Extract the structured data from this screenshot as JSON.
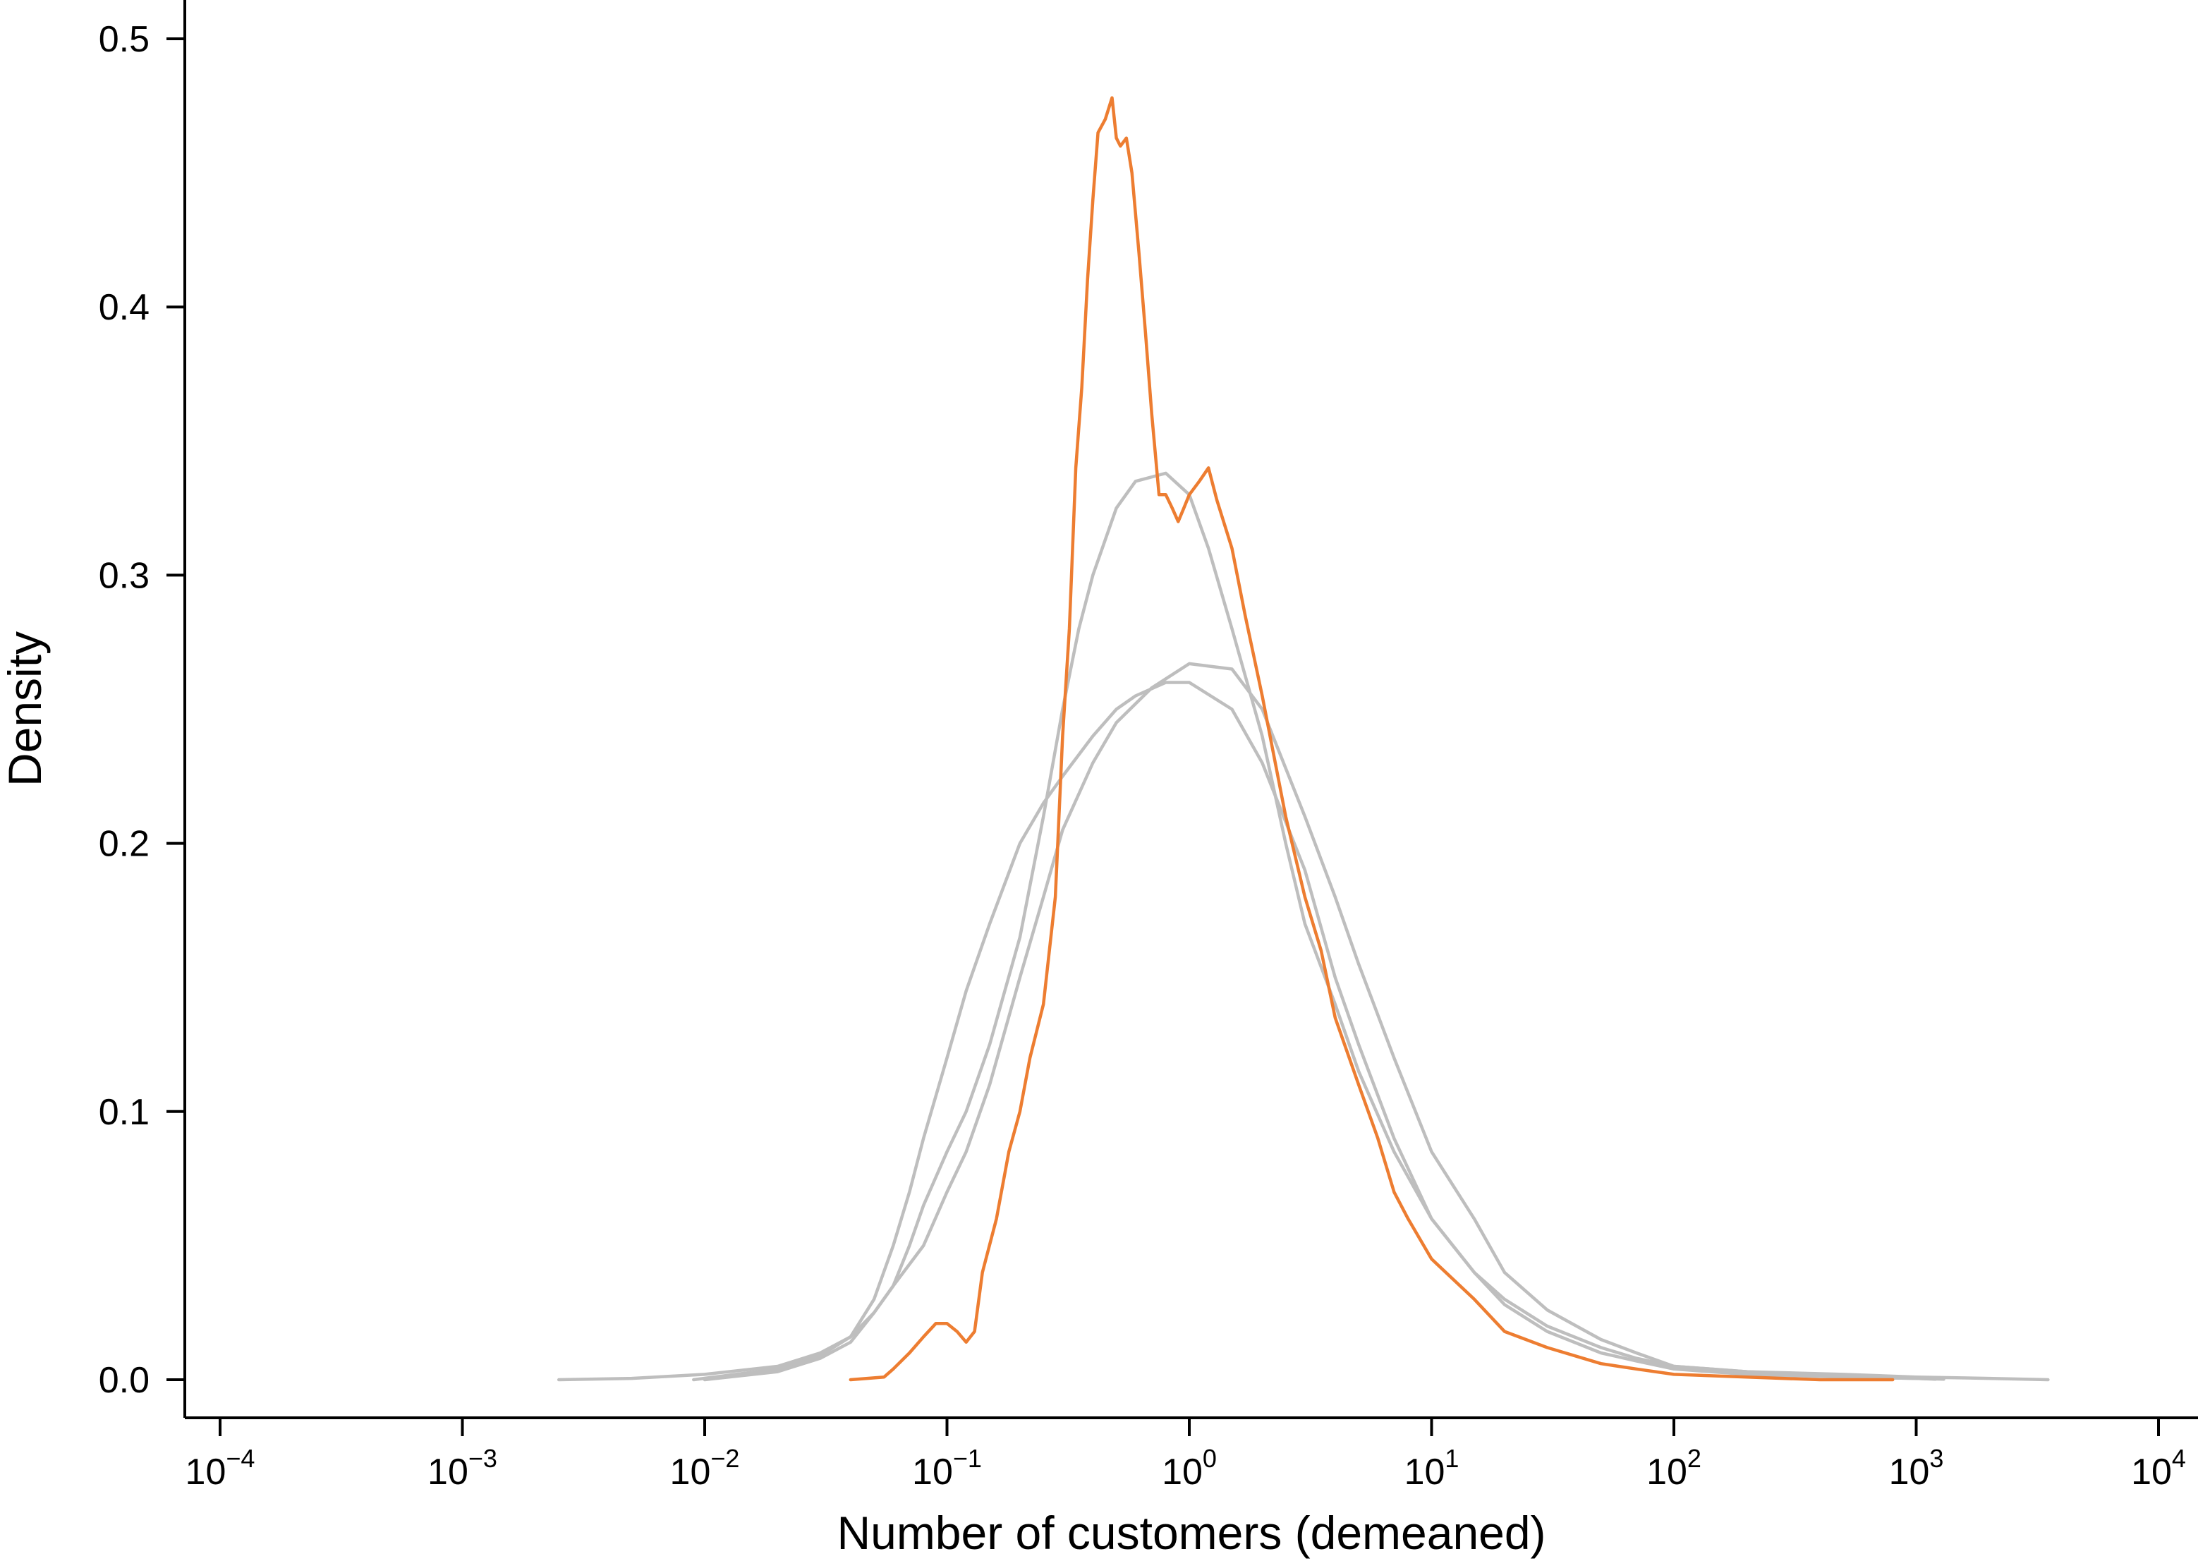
{
  "chart_data": {
    "type": "line",
    "title": "",
    "xlabel": "Number of customers (demeaned)",
    "ylabel": "Density",
    "x_scale": "log10",
    "xlim": [
      0.0001,
      10000
    ],
    "ylim": [
      0,
      0.5
    ],
    "x_ticks": [
      {
        "value": 0.0001,
        "base": "10",
        "exp": "−4"
      },
      {
        "value": 0.001,
        "base": "10",
        "exp": "−3"
      },
      {
        "value": 0.01,
        "base": "10",
        "exp": "−2"
      },
      {
        "value": 0.1,
        "base": "10",
        "exp": "−1"
      },
      {
        "value": 1,
        "base": "10",
        "exp": "0"
      },
      {
        "value": 10,
        "base": "10",
        "exp": "1"
      },
      {
        "value": 100,
        "base": "10",
        "exp": "2"
      },
      {
        "value": 1000,
        "base": "10",
        "exp": "3"
      },
      {
        "value": 10000,
        "base": "10",
        "exp": "4"
      }
    ],
    "y_ticks": [
      {
        "value": 0.0,
        "label": "0.0"
      },
      {
        "value": 0.1,
        "label": "0.1"
      },
      {
        "value": 0.2,
        "label": "0.2"
      },
      {
        "value": 0.3,
        "label": "0.3"
      },
      {
        "value": 0.4,
        "label": "0.4"
      },
      {
        "value": 0.5,
        "label": "0.5"
      }
    ],
    "grid": false,
    "legend": "none",
    "series": [
      {
        "color": "#bebebe",
        "points": [
          [
            0.0025,
            0.0
          ],
          [
            0.005,
            0.0005
          ],
          [
            0.01,
            0.002
          ],
          [
            0.02,
            0.005
          ],
          [
            0.03,
            0.01
          ],
          [
            0.04,
            0.016
          ],
          [
            0.05,
            0.03
          ],
          [
            0.06,
            0.05
          ],
          [
            0.07,
            0.07
          ],
          [
            0.08,
            0.09
          ],
          [
            0.1,
            0.12
          ],
          [
            0.12,
            0.145
          ],
          [
            0.15,
            0.17
          ],
          [
            0.2,
            0.2
          ],
          [
            0.25,
            0.215
          ],
          [
            0.3,
            0.225
          ],
          [
            0.4,
            0.24
          ],
          [
            0.5,
            0.25
          ],
          [
            0.6,
            0.255
          ],
          [
            0.8,
            0.26
          ],
          [
            1.0,
            0.26
          ],
          [
            1.5,
            0.25
          ],
          [
            2,
            0.23
          ],
          [
            3,
            0.19
          ],
          [
            4,
            0.15
          ],
          [
            5,
            0.125
          ],
          [
            7,
            0.09
          ],
          [
            10,
            0.06
          ],
          [
            15,
            0.04
          ],
          [
            20,
            0.028
          ],
          [
            30,
            0.018
          ],
          [
            50,
            0.01
          ],
          [
            70,
            0.007
          ],
          [
            100,
            0.004
          ],
          [
            200,
            0.002
          ],
          [
            500,
            0.001
          ],
          [
            1000,
            0.0005
          ],
          [
            1300,
            0.0002
          ]
        ]
      },
      {
        "color": "#bebebe",
        "points": [
          [
            0.009,
            0.0
          ],
          [
            0.02,
            0.004
          ],
          [
            0.03,
            0.009
          ],
          [
            0.04,
            0.016
          ],
          [
            0.05,
            0.025
          ],
          [
            0.06,
            0.035
          ],
          [
            0.08,
            0.05
          ],
          [
            0.1,
            0.07
          ],
          [
            0.12,
            0.085
          ],
          [
            0.15,
            0.11
          ],
          [
            0.2,
            0.15
          ],
          [
            0.25,
            0.18
          ],
          [
            0.3,
            0.205
          ],
          [
            0.4,
            0.23
          ],
          [
            0.5,
            0.245
          ],
          [
            0.7,
            0.258
          ],
          [
            1.0,
            0.267
          ],
          [
            1.5,
            0.265
          ],
          [
            2,
            0.25
          ],
          [
            3,
            0.21
          ],
          [
            4,
            0.18
          ],
          [
            5,
            0.155
          ],
          [
            7,
            0.12
          ],
          [
            10,
            0.085
          ],
          [
            15,
            0.06
          ],
          [
            20,
            0.04
          ],
          [
            30,
            0.026
          ],
          [
            50,
            0.015
          ],
          [
            70,
            0.01
          ],
          [
            100,
            0.005
          ],
          [
            200,
            0.003
          ],
          [
            500,
            0.002
          ],
          [
            1000,
            0.001
          ],
          [
            2000,
            0.0005
          ],
          [
            3500,
            0.0
          ]
        ]
      },
      {
        "color": "#bebebe",
        "points": [
          [
            0.01,
            0.0
          ],
          [
            0.02,
            0.003
          ],
          [
            0.03,
            0.008
          ],
          [
            0.04,
            0.014
          ],
          [
            0.05,
            0.025
          ],
          [
            0.06,
            0.035
          ],
          [
            0.07,
            0.05
          ],
          [
            0.08,
            0.065
          ],
          [
            0.1,
            0.085
          ],
          [
            0.12,
            0.1
          ],
          [
            0.15,
            0.125
          ],
          [
            0.2,
            0.165
          ],
          [
            0.25,
            0.21
          ],
          [
            0.3,
            0.25
          ],
          [
            0.35,
            0.28
          ],
          [
            0.4,
            0.3
          ],
          [
            0.5,
            0.325
          ],
          [
            0.6,
            0.335
          ],
          [
            0.8,
            0.338
          ],
          [
            1.0,
            0.33
          ],
          [
            1.2,
            0.31
          ],
          [
            1.5,
            0.28
          ],
          [
            2,
            0.24
          ],
          [
            2.5,
            0.2
          ],
          [
            3,
            0.17
          ],
          [
            4,
            0.14
          ],
          [
            5,
            0.115
          ],
          [
            7,
            0.085
          ],
          [
            10,
            0.06
          ],
          [
            15,
            0.04
          ],
          [
            20,
            0.03
          ],
          [
            30,
            0.02
          ],
          [
            50,
            0.012
          ],
          [
            70,
            0.008
          ],
          [
            100,
            0.005
          ],
          [
            200,
            0.003
          ],
          [
            500,
            0.001
          ],
          [
            1000,
            0.0005
          ],
          [
            1200,
            0.0002
          ]
        ]
      },
      {
        "color": "#ed7d31",
        "points": [
          [
            0.04,
            0.0
          ],
          [
            0.055,
            0.001
          ],
          [
            0.06,
            0.004
          ],
          [
            0.07,
            0.01
          ],
          [
            0.08,
            0.016
          ],
          [
            0.09,
            0.021
          ],
          [
            0.1,
            0.021
          ],
          [
            0.11,
            0.018
          ],
          [
            0.12,
            0.014
          ],
          [
            0.13,
            0.018
          ],
          [
            0.14,
            0.04
          ],
          [
            0.16,
            0.06
          ],
          [
            0.18,
            0.085
          ],
          [
            0.2,
            0.1
          ],
          [
            0.22,
            0.12
          ],
          [
            0.25,
            0.14
          ],
          [
            0.28,
            0.18
          ],
          [
            0.3,
            0.24
          ],
          [
            0.32,
            0.28
          ],
          [
            0.34,
            0.34
          ],
          [
            0.36,
            0.37
          ],
          [
            0.38,
            0.41
          ],
          [
            0.4,
            0.44
          ],
          [
            0.42,
            0.465
          ],
          [
            0.45,
            0.47
          ],
          [
            0.48,
            0.478
          ],
          [
            0.5,
            0.463
          ],
          [
            0.52,
            0.46
          ],
          [
            0.55,
            0.463
          ],
          [
            0.58,
            0.45
          ],
          [
            0.62,
            0.42
          ],
          [
            0.66,
            0.39
          ],
          [
            0.7,
            0.36
          ],
          [
            0.75,
            0.33
          ],
          [
            0.8,
            0.33
          ],
          [
            0.85,
            0.325
          ],
          [
            0.9,
            0.32
          ],
          [
            0.95,
            0.325
          ],
          [
            1.0,
            0.33
          ],
          [
            1.1,
            0.335
          ],
          [
            1.2,
            0.34
          ],
          [
            1.3,
            0.328
          ],
          [
            1.5,
            0.31
          ],
          [
            1.7,
            0.285
          ],
          [
            2,
            0.255
          ],
          [
            2.5,
            0.21
          ],
          [
            3,
            0.18
          ],
          [
            3.5,
            0.16
          ],
          [
            4,
            0.135
          ],
          [
            5,
            0.11
          ],
          [
            6,
            0.09
          ],
          [
            7,
            0.07
          ],
          [
            8,
            0.06
          ],
          [
            10,
            0.045
          ],
          [
            15,
            0.03
          ],
          [
            20,
            0.018
          ],
          [
            30,
            0.012
          ],
          [
            50,
            0.006
          ],
          [
            70,
            0.004
          ],
          [
            100,
            0.002
          ],
          [
            200,
            0.001
          ],
          [
            400,
            0.0
          ],
          [
            800,
            0.0
          ]
        ]
      }
    ]
  }
}
